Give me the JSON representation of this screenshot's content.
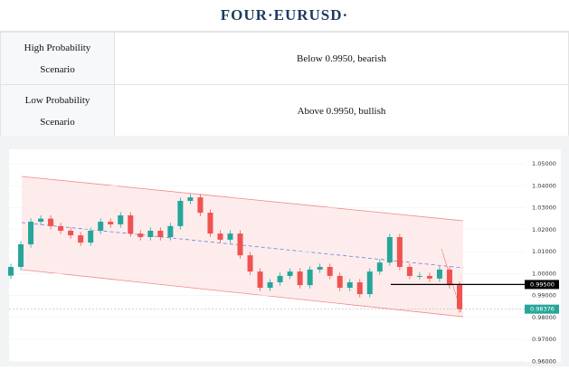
{
  "header": {
    "title": "FOUR·EURUSD·"
  },
  "table": {
    "rows": [
      [
        "High Probability Scenario",
        "Below 0.9950, bearish"
      ],
      [
        "Low Probability Scenario",
        "Above 0.9950, bullish"
      ]
    ]
  },
  "chart_data": {
    "type": "candlestick",
    "up_color": "#26a69a",
    "down_color": "#ef5350",
    "open": [
      0.999,
      1.003,
      1.0133,
      1.0236,
      1.025,
      1.0216,
      1.0195,
      1.0174,
      1.0141,
      1.0195,
      1.0236,
      1.0224,
      1.0265,
      1.0182,
      1.0166,
      1.0195,
      1.0166,
      1.0216,
      1.0331,
      1.0347,
      1.0277,
      1.0182,
      1.0154,
      1.0182,
      1.0083,
      1.0009,
      0.9935,
      0.996,
      0.9989,
      1.0009,
      0.9947,
      1.0018,
      1.003,
      0.9989,
      0.9935,
      0.996,
      0.9906,
      1.0009,
      1.005,
      1.0166,
      1.003,
      0.9989,
      0.9989,
      0.9977,
      1.0018,
      0.9947
    ],
    "high": [
      1.0045,
      1.0148,
      1.0251,
      1.0265,
      1.0265,
      1.0231,
      1.021,
      1.0189,
      1.021,
      1.0251,
      1.0251,
      1.028,
      1.028,
      1.0197,
      1.021,
      1.021,
      1.0231,
      1.0346,
      1.0362,
      1.0362,
      1.0292,
      1.0197,
      1.0197,
      1.0197,
      1.0098,
      1.0024,
      0.9975,
      1.0004,
      1.0024,
      1.0024,
      1.0033,
      1.0045,
      1.0045,
      1.0004,
      0.9975,
      0.9975,
      1.0024,
      1.0065,
      1.0181,
      1.0181,
      1.0045,
      1.0004,
      1.0004,
      1.0033,
      1.0033,
      0.9962
    ],
    "low": [
      0.9975,
      1.0015,
      1.0118,
      1.0221,
      1.0201,
      1.018,
      1.0159,
      1.0126,
      1.0126,
      1.018,
      1.0209,
      1.0209,
      1.0167,
      1.0151,
      1.0151,
      1.0151,
      1.0151,
      1.0201,
      1.0316,
      1.0262,
      1.0167,
      1.0139,
      1.0139,
      1.0068,
      0.9994,
      0.992,
      0.992,
      0.9945,
      0.9974,
      0.9932,
      0.9932,
      1.0003,
      0.9974,
      0.992,
      0.992,
      0.9891,
      0.9891,
      0.9994,
      1.0035,
      1.0015,
      0.9974,
      0.9974,
      0.9962,
      0.9962,
      0.9932,
      0.9823
    ],
    "close": [
      1.003,
      1.0133,
      1.0236,
      1.025,
      1.0216,
      1.0195,
      1.0174,
      1.0141,
      1.0195,
      1.0236,
      1.0224,
      1.0265,
      1.0182,
      1.0166,
      1.0195,
      1.0166,
      1.0216,
      1.0331,
      1.0347,
      1.0277,
      1.0182,
      1.0154,
      1.0182,
      1.0083,
      1.0009,
      0.9935,
      0.996,
      0.9989,
      1.0009,
      0.9947,
      1.0018,
      1.003,
      0.9989,
      0.9935,
      0.996,
      0.9906,
      1.0009,
      1.005,
      1.0166,
      1.003,
      0.9989,
      0.9989,
      0.9977,
      1.0018,
      0.9947,
      0.98376
    ],
    "ylim": [
      0.9597,
      1.0566
    ],
    "yticks": [
      {
        "value": 1.05,
        "label": "1.05000"
      },
      {
        "value": 1.04,
        "label": "1.04000"
      },
      {
        "value": 1.03,
        "label": "1.03000"
      },
      {
        "value": 1.02,
        "label": "1.02000"
      },
      {
        "value": 1.01,
        "label": "1.01000"
      },
      {
        "value": 1.0,
        "label": "1.00000"
      },
      {
        "value": 0.99,
        "label": "0.99000"
      },
      {
        "value": 0.98,
        "label": "0.98000"
      },
      {
        "value": 0.97,
        "label": "0.97000"
      },
      {
        "value": 0.96,
        "label": "0.96000"
      }
    ],
    "price_line": {
      "value": 0.995,
      "label": "0.99500"
    },
    "last_price": {
      "value": 0.98376,
      "label": "0.98376"
    },
    "grid": true
  }
}
